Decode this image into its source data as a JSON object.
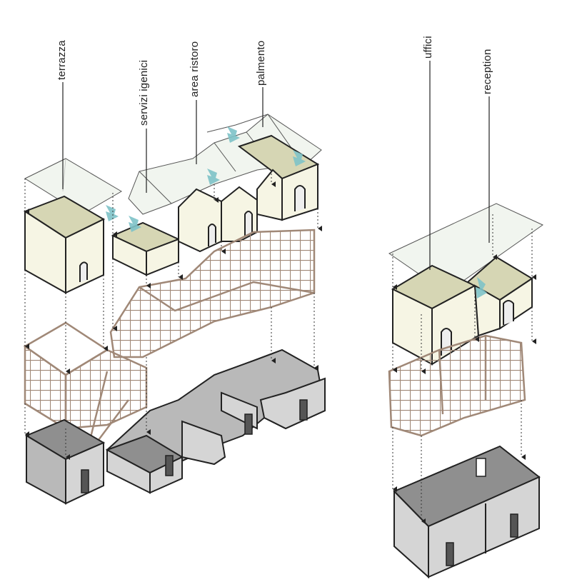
{
  "labels": {
    "terrazza": "terrazza",
    "servizi_igenici": "servizi igenici",
    "area_ristoro": "area ristoro",
    "palmento": "palmento",
    "uffici": "uffici",
    "reception": "reception"
  },
  "colors": {
    "roof_fill": "#f1f5ef",
    "wall_light": "#f6f5e4",
    "wall_shade": "#d6d6b4",
    "frame": "#a08877",
    "base_light": "#d5d5d5",
    "base_mid": "#b9b9b9",
    "base_dark": "#8f8f8f",
    "arrow": "#7ec3c8",
    "line": "#222222"
  }
}
